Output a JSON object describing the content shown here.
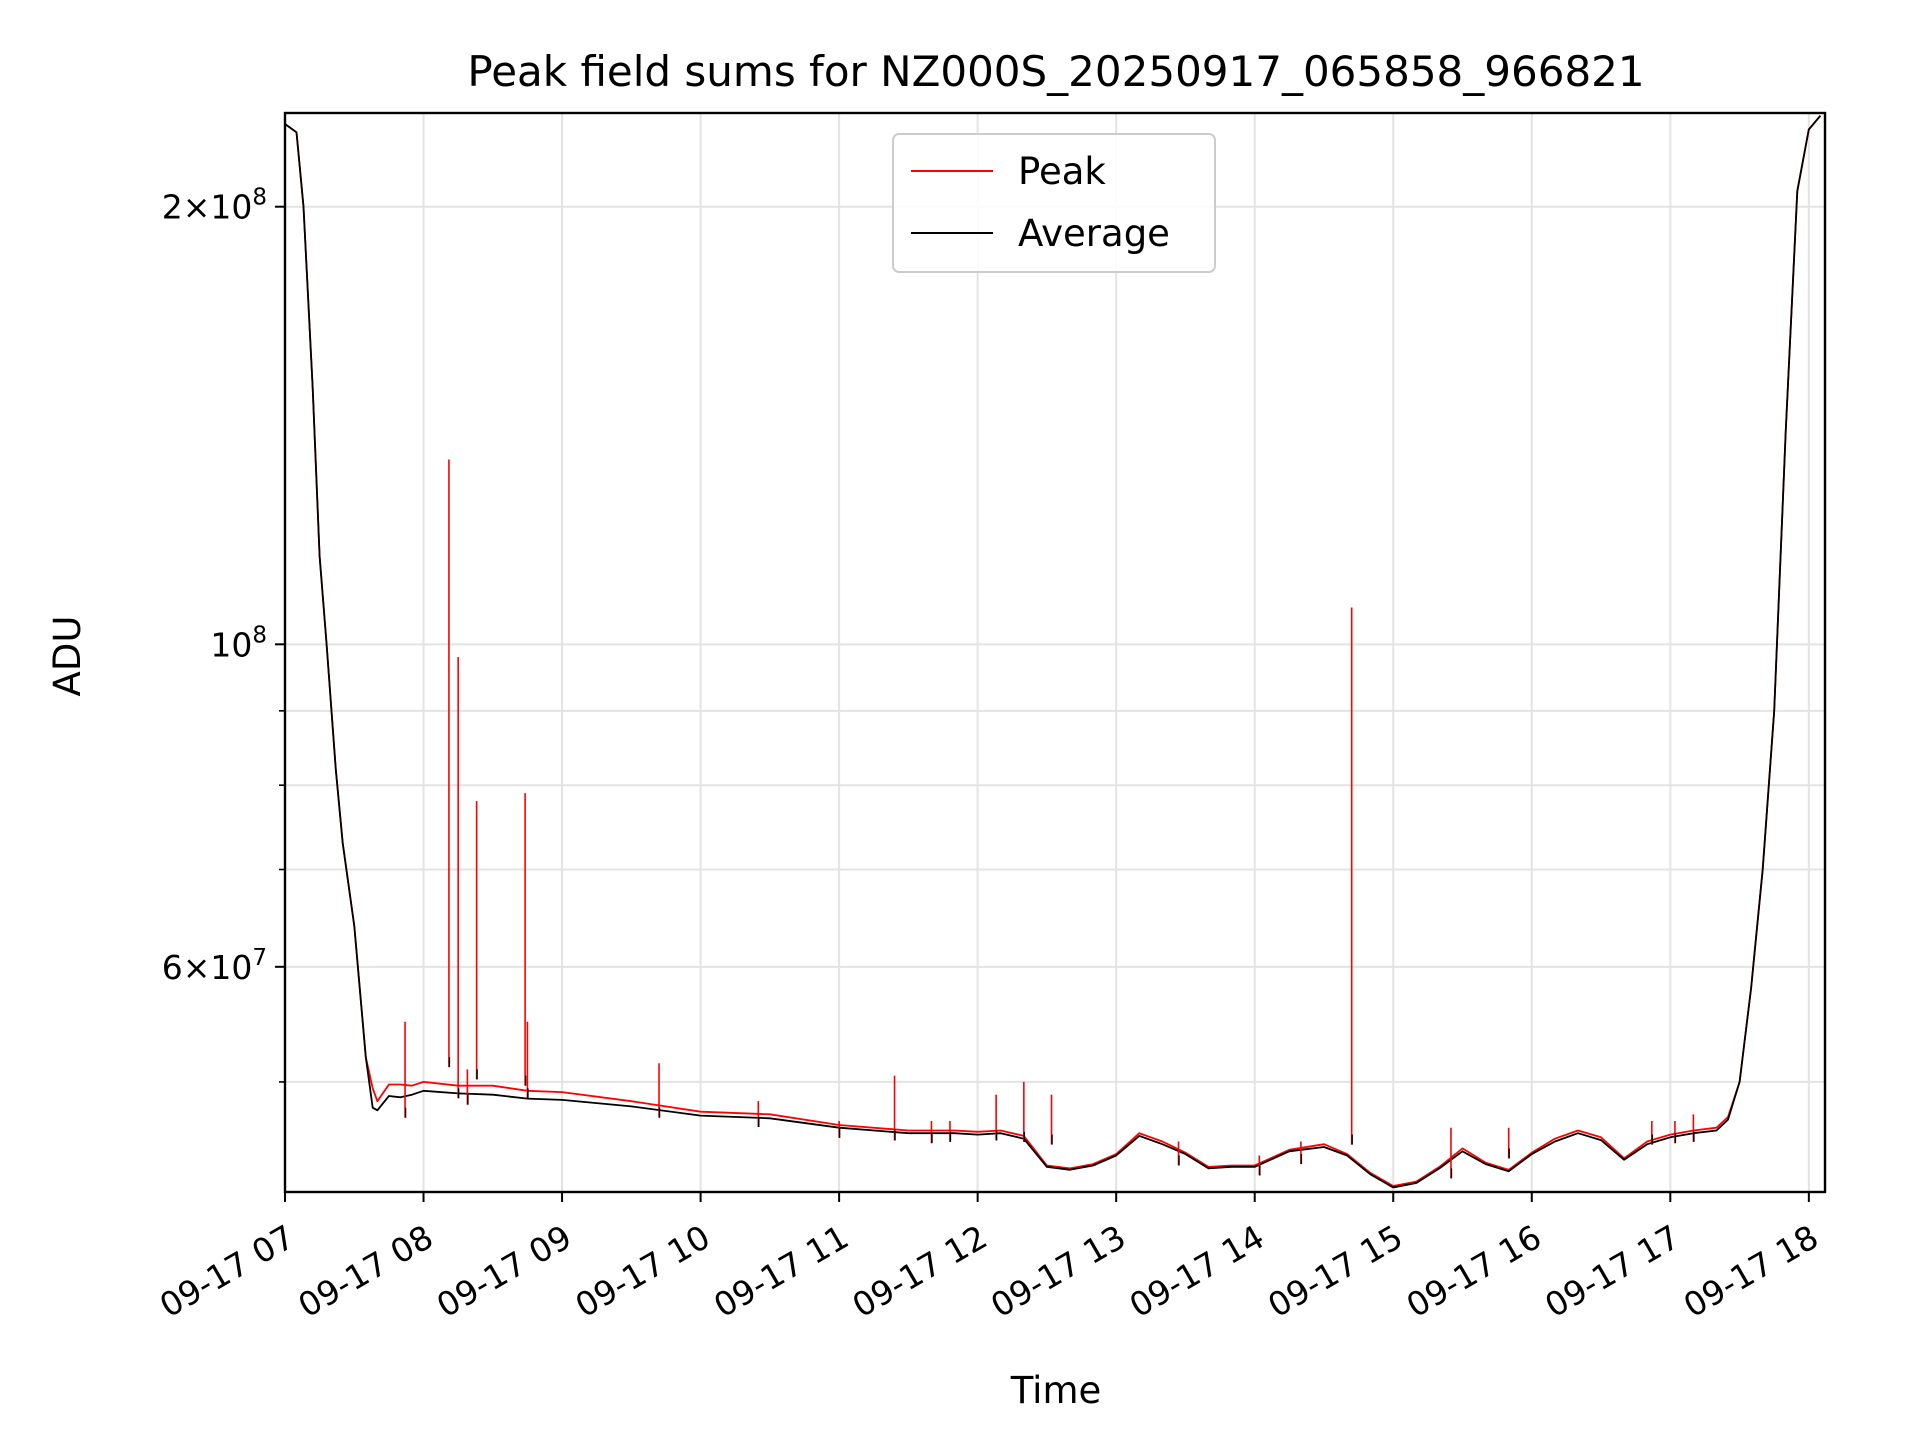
{
  "chart_data": {
    "type": "line",
    "title": "Peak field sums for NZ000S_20250917_065858_966821",
    "xlabel": "Time",
    "ylabel": "ADU",
    "yscale": "log",
    "xlim": [
      "2025-09-17 07:00",
      "2025-09-17 18:07"
    ],
    "ylim": [
      42000000,
      232000000
    ],
    "x_ticks": [
      "09-17 07",
      "09-17 08",
      "09-17 09",
      "09-17 10",
      "09-17 11",
      "09-17 12",
      "09-17 13",
      "09-17 14",
      "09-17 15",
      "09-17 16",
      "09-17 17",
      "09-17 18"
    ],
    "y_tick_labels": [
      {
        "value": 200000000,
        "mantissa": "2",
        "exp": "8"
      },
      {
        "value": 100000000,
        "mantissa": "",
        "exp": "8"
      },
      {
        "value": 60000000,
        "mantissa": "6",
        "exp": "7"
      }
    ],
    "y_minor_ticks": [
      50000000,
      70000000,
      80000000,
      90000000
    ],
    "grid": true,
    "legend_position": "top-center",
    "series": [
      {
        "name": "Peak",
        "color": "#ff0000",
        "x": [
          "2025-09-17 07:00",
          "2025-09-17 07:05",
          "2025-09-17 07:08",
          "2025-09-17 07:12",
          "2025-09-17 07:15",
          "2025-09-17 07:18",
          "2025-09-17 07:22",
          "2025-09-17 07:25",
          "2025-09-17 07:30",
          "2025-09-17 07:35",
          "2025-09-17 07:38",
          "2025-09-17 07:40",
          "2025-09-17 07:45",
          "2025-09-17 07:50",
          "2025-09-17 07:55",
          "2025-09-17 08:00",
          "2025-09-17 08:15",
          "2025-09-17 08:30",
          "2025-09-17 08:45",
          "2025-09-17 09:00",
          "2025-09-17 09:30",
          "2025-09-17 10:00",
          "2025-09-17 10:30",
          "2025-09-17 11:00",
          "2025-09-17 11:30",
          "2025-09-17 11:50",
          "2025-09-17 12:00",
          "2025-09-17 12:10",
          "2025-09-17 12:20",
          "2025-09-17 12:30",
          "2025-09-17 12:40",
          "2025-09-17 12:50",
          "2025-09-17 13:00",
          "2025-09-17 13:10",
          "2025-09-17 13:20",
          "2025-09-17 13:30",
          "2025-09-17 13:40",
          "2025-09-17 13:50",
          "2025-09-17 14:00",
          "2025-09-17 14:15",
          "2025-09-17 14:30",
          "2025-09-17 14:40",
          "2025-09-17 14:50",
          "2025-09-17 15:00",
          "2025-09-17 15:10",
          "2025-09-17 15:20",
          "2025-09-17 15:30",
          "2025-09-17 15:40",
          "2025-09-17 15:50",
          "2025-09-17 16:00",
          "2025-09-17 16:10",
          "2025-09-17 16:20",
          "2025-09-17 16:30",
          "2025-09-17 16:40",
          "2025-09-17 16:50",
          "2025-09-17 17:00",
          "2025-09-17 17:10",
          "2025-09-17 17:20",
          "2025-09-17 17:25",
          "2025-09-17 17:30",
          "2025-09-17 17:35",
          "2025-09-17 17:40",
          "2025-09-17 17:45",
          "2025-09-17 17:50",
          "2025-09-17 17:55",
          "2025-09-17 18:00",
          "2025-09-17 18:05"
        ],
        "y": [
          228000000,
          225000000,
          200000000,
          150000000,
          115000000,
          100000000,
          82000000,
          73000000,
          64000000,
          52000000,
          49500000,
          48500000,
          49800000,
          49800000,
          49700000,
          50000000,
          49700000,
          49700000,
          49300000,
          49200000,
          48500000,
          47700000,
          47500000,
          46700000,
          46300000,
          46300000,
          46200000,
          46300000,
          45900000,
          43800000,
          43600000,
          43900000,
          44600000,
          46100000,
          45500000,
          44700000,
          43700000,
          43800000,
          43800000,
          44900000,
          45300000,
          44600000,
          43300000,
          42400000,
          42700000,
          43700000,
          45000000,
          44000000,
          43500000,
          44700000,
          45700000,
          46300000,
          45800000,
          44300000,
          45500000,
          46000000,
          46300000,
          46500000,
          47300000,
          50000000,
          58000000,
          70000000,
          90000000,
          140000000,
          205000000,
          226000000,
          231000000
        ]
      },
      {
        "name": "Average",
        "color": "#000000",
        "x": [
          "2025-09-17 07:00",
          "2025-09-17 07:05",
          "2025-09-17 07:08",
          "2025-09-17 07:12",
          "2025-09-17 07:15",
          "2025-09-17 07:18",
          "2025-09-17 07:22",
          "2025-09-17 07:25",
          "2025-09-17 07:30",
          "2025-09-17 07:35",
          "2025-09-17 07:38",
          "2025-09-17 07:40",
          "2025-09-17 07:45",
          "2025-09-17 07:50",
          "2025-09-17 07:55",
          "2025-09-17 08:00",
          "2025-09-17 08:15",
          "2025-09-17 08:30",
          "2025-09-17 08:45",
          "2025-09-17 09:00",
          "2025-09-17 09:30",
          "2025-09-17 10:00",
          "2025-09-17 10:30",
          "2025-09-17 11:00",
          "2025-09-17 11:30",
          "2025-09-17 11:50",
          "2025-09-17 12:00",
          "2025-09-17 12:10",
          "2025-09-17 12:20",
          "2025-09-17 12:30",
          "2025-09-17 12:40",
          "2025-09-17 12:50",
          "2025-09-17 13:00",
          "2025-09-17 13:10",
          "2025-09-17 13:20",
          "2025-09-17 13:30",
          "2025-09-17 13:40",
          "2025-09-17 13:50",
          "2025-09-17 14:00",
          "2025-09-17 14:15",
          "2025-09-17 14:30",
          "2025-09-17 14:40",
          "2025-09-17 14:50",
          "2025-09-17 15:00",
          "2025-09-17 15:10",
          "2025-09-17 15:20",
          "2025-09-17 15:30",
          "2025-09-17 15:40",
          "2025-09-17 15:50",
          "2025-09-17 16:00",
          "2025-09-17 16:10",
          "2025-09-17 16:20",
          "2025-09-17 16:30",
          "2025-09-17 16:40",
          "2025-09-17 16:50",
          "2025-09-17 17:00",
          "2025-09-17 17:10",
          "2025-09-17 17:20",
          "2025-09-17 17:25",
          "2025-09-17 17:30",
          "2025-09-17 17:35",
          "2025-09-17 17:40",
          "2025-09-17 17:45",
          "2025-09-17 17:50",
          "2025-09-17 17:55",
          "2025-09-17 18:00",
          "2025-09-17 18:05"
        ],
        "y": [
          228000000,
          225000000,
          200000000,
          150000000,
          115000000,
          100000000,
          82000000,
          73000000,
          64000000,
          52000000,
          48000000,
          47800000,
          48900000,
          48800000,
          49000000,
          49300000,
          49100000,
          49000000,
          48700000,
          48600000,
          48100000,
          47400000,
          47200000,
          46500000,
          46100000,
          46100000,
          46000000,
          46100000,
          45700000,
          43700000,
          43500000,
          43800000,
          44500000,
          45900000,
          45300000,
          44600000,
          43600000,
          43700000,
          43700000,
          44800000,
          45100000,
          44500000,
          43200000,
          42300000,
          42600000,
          43600000,
          44800000,
          43900000,
          43400000,
          44600000,
          45500000,
          46100000,
          45600000,
          44200000,
          45300000,
          45800000,
          46100000,
          46300000,
          47100000,
          50000000,
          58000000,
          70000000,
          90000000,
          140000000,
          205000000,
          226000000,
          231000000
        ]
      }
    ],
    "spikes": [
      {
        "x": "2025-09-17 07:52",
        "peak": 55000000,
        "average": 48000000
      },
      {
        "x": "2025-09-17 08:11",
        "peak": 134000000,
        "average": 52000000
      },
      {
        "x": "2025-09-17 08:15",
        "peak": 98000000,
        "average": 49500000
      },
      {
        "x": "2025-09-17 08:19",
        "peak": 51000000,
        "average": 49000000
      },
      {
        "x": "2025-09-17 08:23",
        "peak": 78000000,
        "average": 51000000
      },
      {
        "x": "2025-09-17 08:44",
        "peak": 79000000,
        "average": 50500000
      },
      {
        "x": "2025-09-17 08:45",
        "peak": 55000000,
        "average": 49500000
      },
      {
        "x": "2025-09-17 09:42",
        "peak": 51500000,
        "average": 48000000
      },
      {
        "x": "2025-09-17 10:25",
        "peak": 48500000,
        "average": 47300000
      },
      {
        "x": "2025-09-17 11:00",
        "peak": 47000000,
        "average": 46500000
      },
      {
        "x": "2025-09-17 11:24",
        "peak": 50500000,
        "average": 46300000
      },
      {
        "x": "2025-09-17 11:40",
        "peak": 47000000,
        "average": 46100000
      },
      {
        "x": "2025-09-17 11:48",
        "peak": 47000000,
        "average": 46200000
      },
      {
        "x": "2025-09-17 12:08",
        "peak": 49000000,
        "average": 46300000
      },
      {
        "x": "2025-09-17 12:20",
        "peak": 50000000,
        "average": 46200000
      },
      {
        "x": "2025-09-17 12:32",
        "peak": 49000000,
        "average": 46000000
      },
      {
        "x": "2025-09-17 13:27",
        "peak": 45500000,
        "average": 44500000
      },
      {
        "x": "2025-09-17 14:02",
        "peak": 44500000,
        "average": 43800000
      },
      {
        "x": "2025-09-17 14:20",
        "peak": 45500000,
        "average": 44600000
      },
      {
        "x": "2025-09-17 14:42",
        "peak": 106000000,
        "average": 46000000
      },
      {
        "x": "2025-09-17 15:25",
        "peak": 46500000,
        "average": 43600000
      },
      {
        "x": "2025-09-17 15:50",
        "peak": 46500000,
        "average": 45000000
      },
      {
        "x": "2025-09-17 16:52",
        "peak": 47000000,
        "average": 46000000
      },
      {
        "x": "2025-09-17 17:02",
        "peak": 47000000,
        "average": 46100000
      },
      {
        "x": "2025-09-17 17:10",
        "peak": 47500000,
        "average": 46200000
      }
    ]
  }
}
